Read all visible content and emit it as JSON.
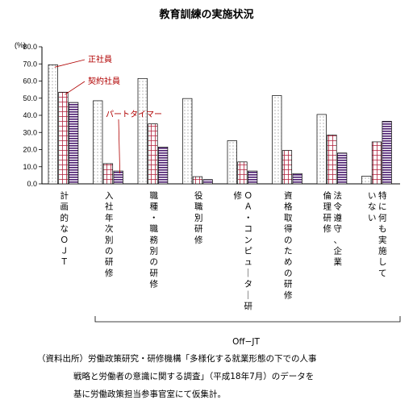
{
  "chart_data": {
    "type": "bar",
    "title": "教育訓練の実施状況",
    "ylabel": "(%)",
    "ylim": [
      0,
      80
    ],
    "ytick_labels": [
      "0.0",
      "10.0",
      "20.0",
      "30.0",
      "40.0",
      "50.0",
      "60.0",
      "70.0",
      "80.0"
    ],
    "categories": [
      "計画的なＯＪＴ",
      "入社年次別の研修",
      "職種・職務別の研修",
      "役職別研修",
      "ＯＡ・コンピューター研修",
      "資格取得のための研修",
      "法令遵守、企業倫理研修",
      "特に何も実施していない"
    ],
    "series": [
      {
        "name": "正社員",
        "values": [
          69.5,
          48.5,
          61.5,
          49.8,
          25.2,
          51.5,
          40.5,
          4.5
        ],
        "pattern": "dots"
      },
      {
        "name": "契約社員",
        "values": [
          53.5,
          11.8,
          35.0,
          4.2,
          12.8,
          19.5,
          28.5,
          24.5
        ],
        "pattern": "grid"
      },
      {
        "name": "パートタイマー",
        "values": [
          47.5,
          7.5,
          21.5,
          2.5,
          7.5,
          6.0,
          18.0,
          36.5
        ],
        "pattern": "stripes"
      }
    ],
    "group_label": "Off−JT",
    "legend_placement": "annotations on first groups",
    "grid": false
  },
  "source_note": {
    "line1": "（資料出所）労働政策研究・研修機構「多様化する就業形態の下での人事",
    "line2": "戦略と労働者の意識に関する調査」（平成18年7月）のデータを",
    "line3": "基に労働政策担当参事官室にて仮集計。"
  },
  "colors": {
    "annotation": "#b00000",
    "grid_pattern": "#b0203a",
    "stripe_pattern": "#4a1a6e",
    "axis": "#000000"
  }
}
